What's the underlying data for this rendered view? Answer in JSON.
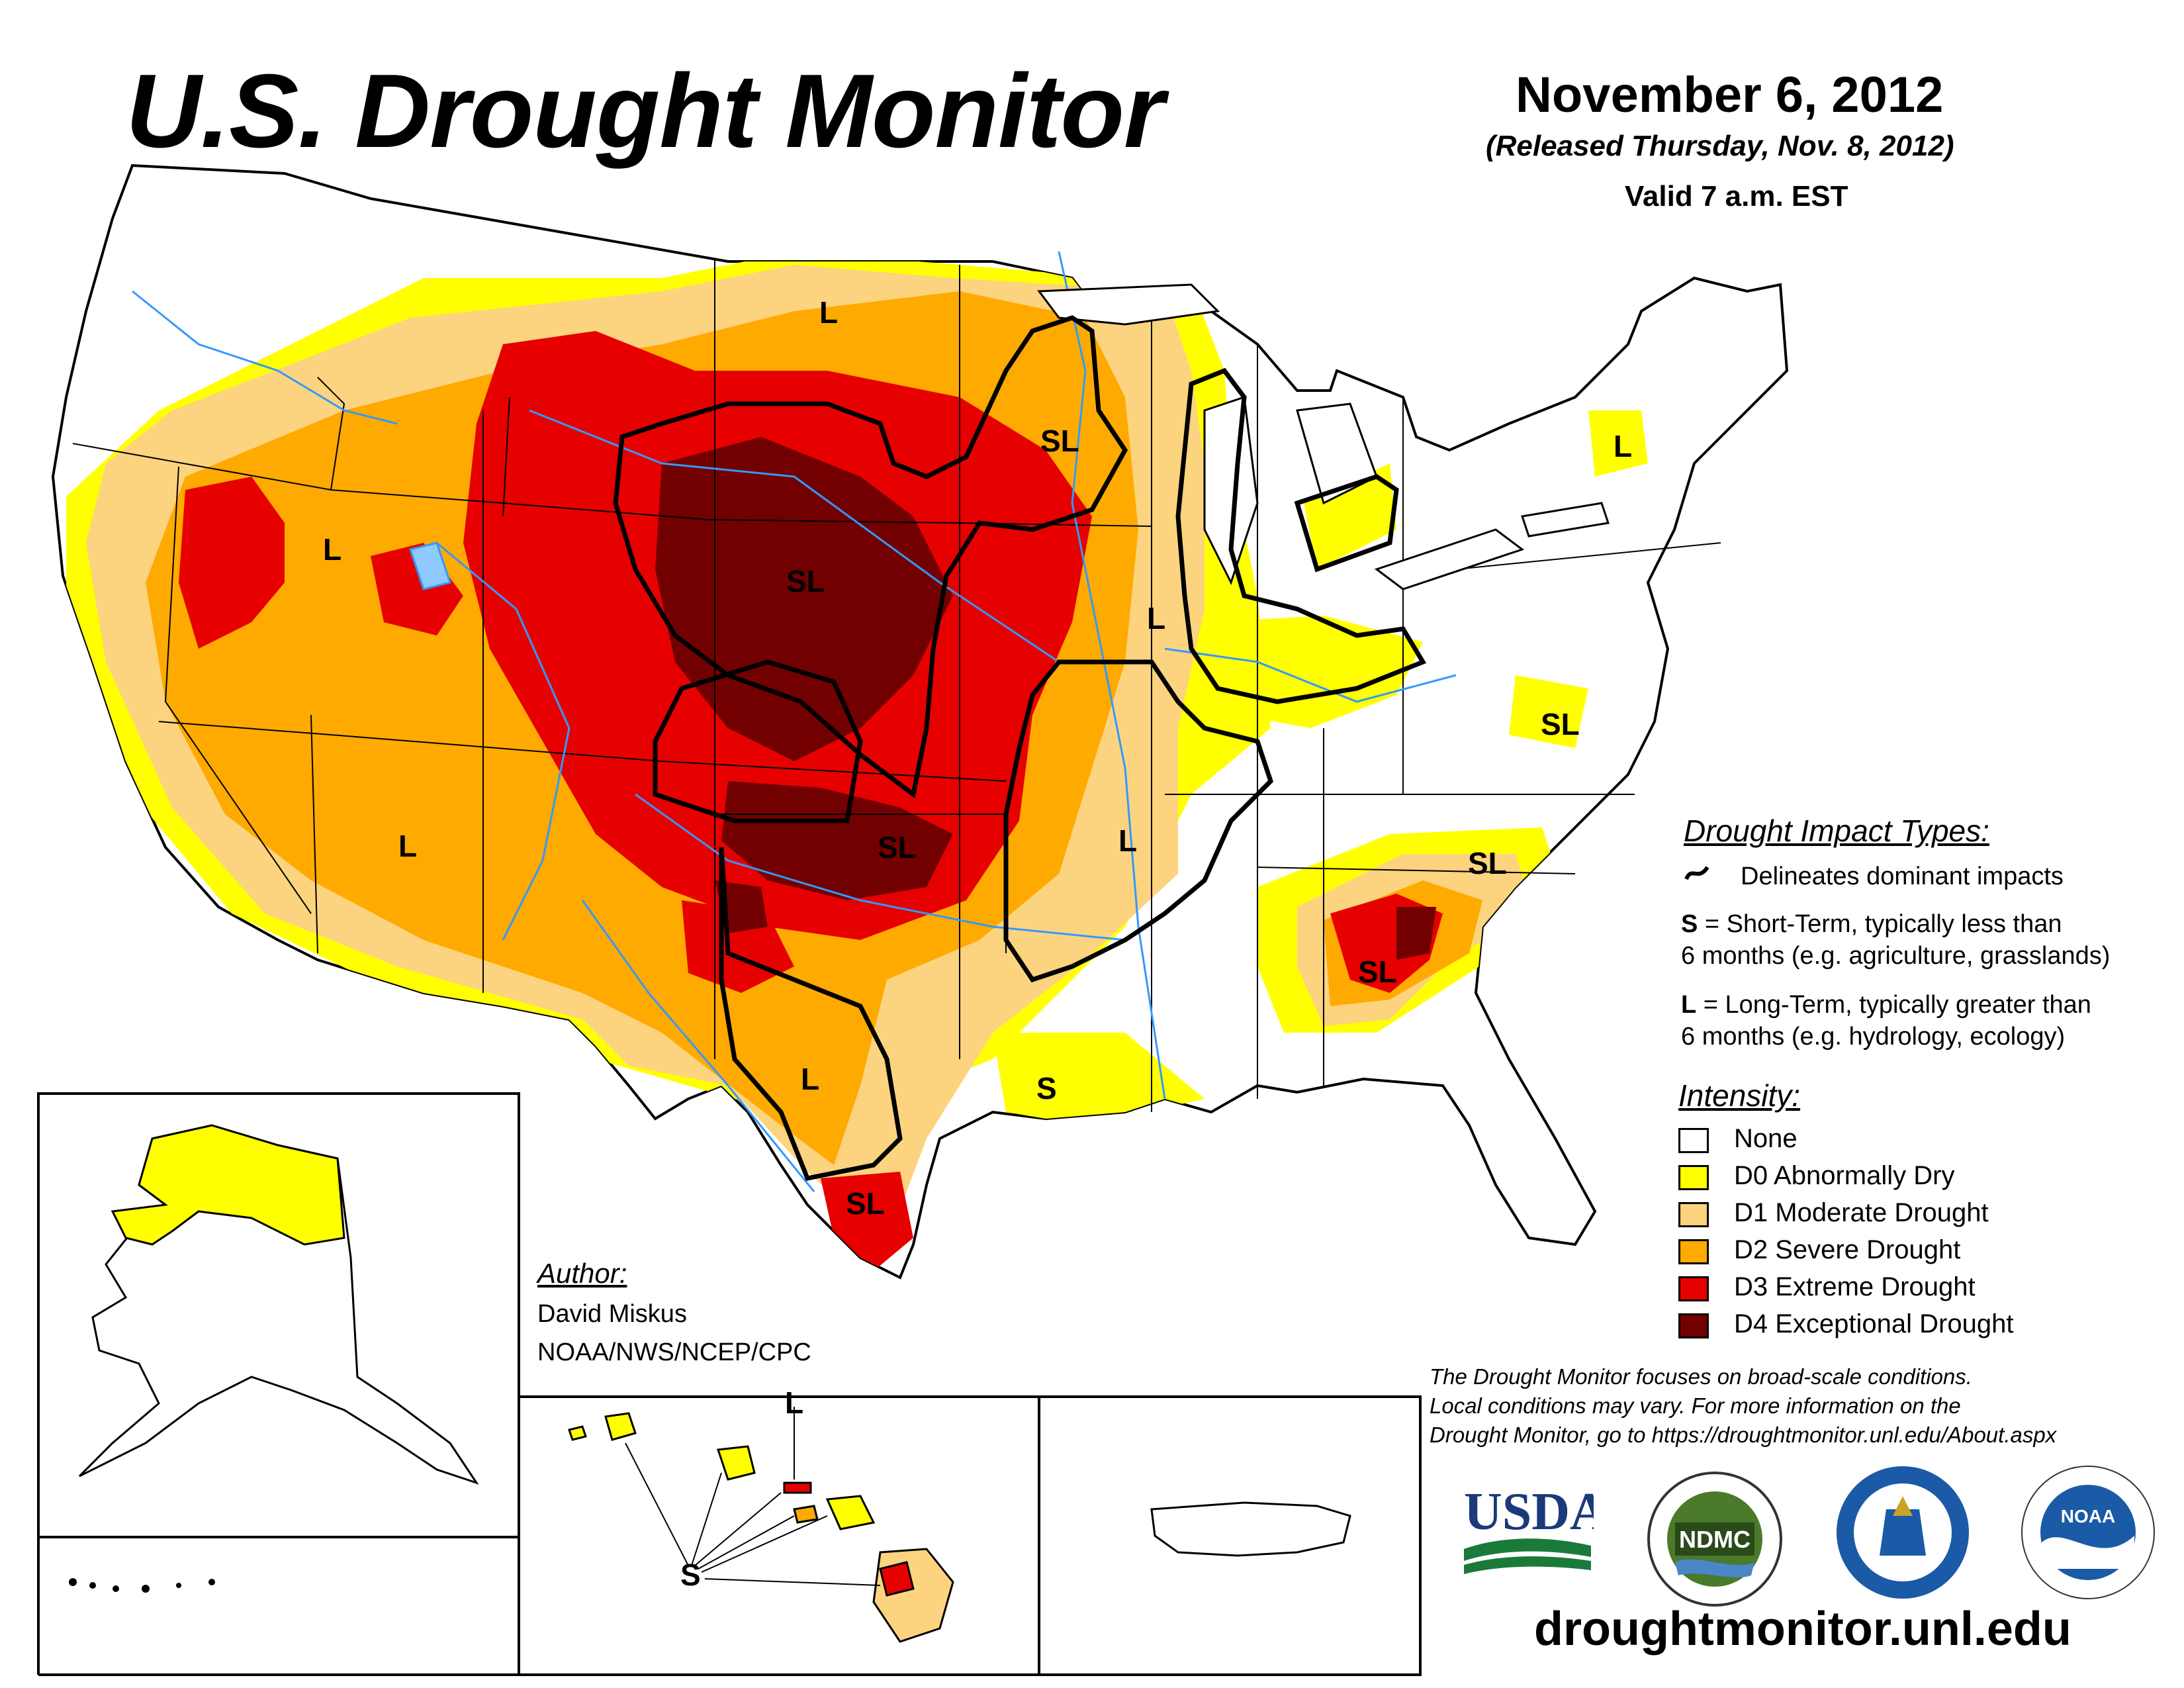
{
  "header": {
    "title": "U.S. Drought Monitor",
    "date": "November 6, 2012",
    "released": "(Released Thursday, Nov. 8, 2012)",
    "valid": "Valid 7 a.m. EST"
  },
  "impact_legend": {
    "heading": "Drought Impact Types:",
    "delineates": "Delineates dominant impacts",
    "s_key": "S",
    "s_text_1": " = Short-Term, typically less than",
    "s_text_2": "6 months (e.g. agriculture, grasslands)",
    "l_key": "L",
    "l_text_1": " = Long-Term, typically greater than",
    "l_text_2": "6 months (e.g. hydrology, ecology)"
  },
  "intensity_legend": {
    "heading": "Intensity:",
    "items": [
      {
        "label": "None",
        "color": "#ffffff"
      },
      {
        "label": "D0 Abnormally Dry",
        "color": "#ffff00"
      },
      {
        "label": "D1 Moderate Drought",
        "color": "#fcd37f"
      },
      {
        "label": "D2 Severe Drought",
        "color": "#ffaa00"
      },
      {
        "label": "D3 Extreme Drought",
        "color": "#e60000"
      },
      {
        "label": "D4 Exceptional Drought",
        "color": "#730000"
      }
    ]
  },
  "map_labels": {
    "l_north_dakota": "L",
    "sl_upper_midwest": "SL",
    "l_great_basin": "L",
    "sl_plains": "SL",
    "l_iowa_illinois": "L",
    "l_new_york": "L",
    "sl_virginia": "SL",
    "l_arizona": "L",
    "sl_oklahoma": "SL",
    "l_arkansas": "L",
    "sl_carolinas": "SL",
    "sl_georgia": "SL",
    "l_texas": "L",
    "s_louisiana": "S",
    "sl_south_texas": "SL",
    "l_hawaii": "L",
    "s_hawaii": "S"
  },
  "author": {
    "heading": "Author:",
    "name": "David Miskus",
    "org": "NOAA/NWS/NCEP/CPC"
  },
  "disclaimer": {
    "line1": "The Drought Monitor focuses on broad-scale conditions.",
    "line2": "Local conditions may vary. For more information on the",
    "line3": "Drought Monitor, go to https://droughtmonitor.unl.edu/About.aspx"
  },
  "logos": {
    "usda": "USDA",
    "ndmc": "NDMC",
    "noaa": "NOAA"
  },
  "url": "droughtmonitor.unl.edu",
  "colors": {
    "none": "#ffffff",
    "d0": "#ffff00",
    "d1": "#fcd37f",
    "d2": "#ffaa00",
    "d3": "#e60000",
    "d4": "#730000",
    "water": "#3399ff"
  }
}
